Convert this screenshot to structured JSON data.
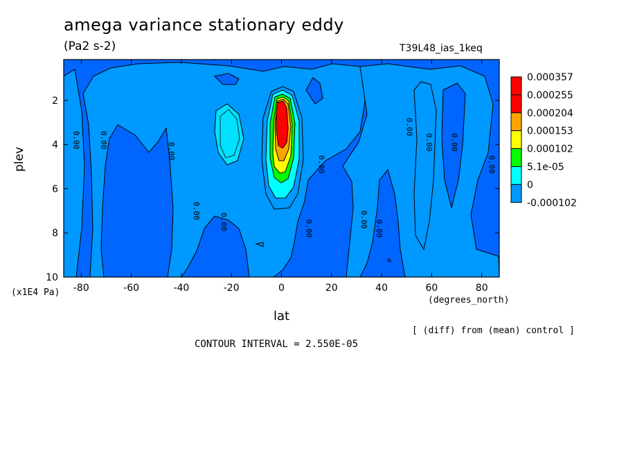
{
  "chart_data": {
    "type": "contour",
    "title": "amega variance stationary eddy",
    "units": "(Pa2 s-2)",
    "run_label": "T39L48_ias_1keq",
    "xlabel": "lat",
    "x_units": "(degrees_north)",
    "ylabel": "plev",
    "y_units": "(x1E4 Pa)",
    "x_ticks": [
      "-80",
      "-60",
      "-40",
      "-20",
      "0",
      "20",
      "40",
      "60",
      "80"
    ],
    "x_tick_values": [
      -80,
      -60,
      -40,
      -20,
      0,
      20,
      40,
      60,
      80
    ],
    "y_ticks": [
      "2",
      "4",
      "6",
      "8",
      "10"
    ],
    "y_tick_values": [
      2,
      4,
      6,
      8,
      10
    ],
    "xlim": [
      -87,
      87
    ],
    "ylim": [
      0.15,
      10
    ],
    "legend_levels": [
      "0.000357",
      "0.000255",
      "0.000204",
      "0.000153",
      "0.000102",
      "5.1e-05",
      "0",
      "-0.000102"
    ],
    "legend_colors": [
      "#ff0000",
      "#ff0000",
      "#ffa500",
      "#ffff00",
      "#00ff00",
      "#00ffff",
      "#0099ff",
      "#0066ff"
    ],
    "contour_label": "0.00",
    "contour_label_positions": [
      {
        "lat": -83,
        "plev": 3.8
      },
      {
        "lat": -72,
        "plev": 3.8
      },
      {
        "lat": -45,
        "plev": 4.3
      },
      {
        "lat": -35,
        "plev": 7.0
      },
      {
        "lat": -24,
        "plev": 7.5
      },
      {
        "lat": 10,
        "plev": 7.8
      },
      {
        "lat": 15,
        "plev": 4.9
      },
      {
        "lat": 32,
        "plev": 7.4
      },
      {
        "lat": 38,
        "plev": 7.8
      },
      {
        "lat": 50,
        "plev": 3.2
      },
      {
        "lat": 58,
        "plev": 3.9
      },
      {
        "lat": 68,
        "plev": 3.9
      },
      {
        "lat": 83,
        "plev": 4.9
      }
    ],
    "legend_position": "right",
    "contour_interval_text": "CONTOUR INTERVAL = 2.550E-05",
    "footnote": "[ (diff) from (mean) control ]"
  }
}
